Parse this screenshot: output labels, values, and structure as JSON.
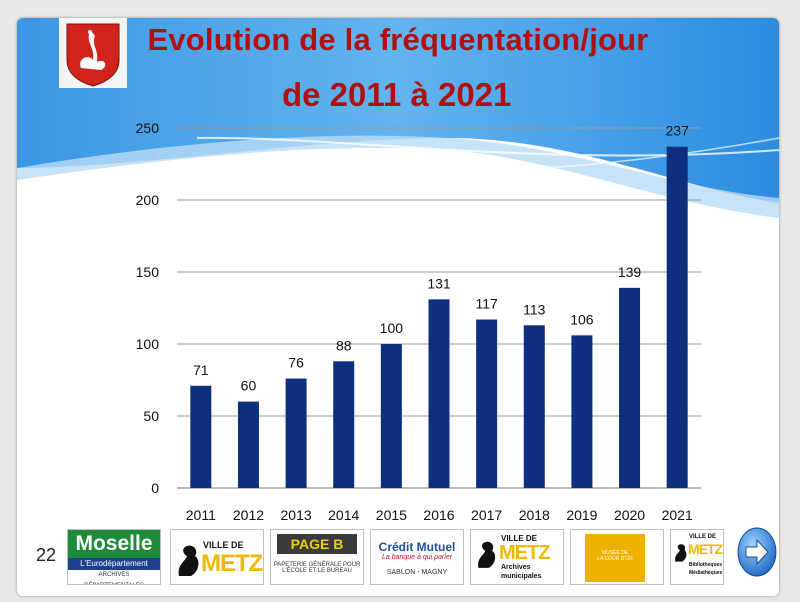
{
  "title": {
    "line1": "Evolution de la fréquentation/jour",
    "line2": "de 2011 à 2021"
  },
  "slide_number": "22",
  "colors": {
    "title": "#b01010",
    "bar": "#0e2f7e",
    "wave": "#3f9ce6"
  },
  "chart_data": {
    "type": "bar",
    "title": "",
    "xlabel": "",
    "ylabel": "",
    "categories": [
      "2011",
      "2012",
      "2013",
      "2014",
      "2015",
      "2016",
      "2017",
      "2018",
      "2019",
      "2020",
      "2021"
    ],
    "values": [
      71,
      60,
      76,
      88,
      100,
      131,
      117,
      113,
      106,
      139,
      237
    ],
    "ylim": [
      0,
      250
    ],
    "yticks": [
      0,
      50,
      100,
      150,
      200,
      250
    ],
    "grid": true,
    "legend": "none",
    "data_labels": true
  },
  "logos": [
    {
      "name": "moselle-logo",
      "lines": [
        "Moselle",
        "L'Eurodépartement",
        "ARCHIVES DÉPARTEMENTALES"
      ]
    },
    {
      "name": "ville-de-metz-logo",
      "lines": [
        "VILLE DE",
        "METZ"
      ]
    },
    {
      "name": "page-b-logo",
      "lines": [
        "PAGE B",
        "PAPETERIE GÉNÉRALE POUR",
        "L'ÉCOLE ET LE BUREAU"
      ]
    },
    {
      "name": "credit-mutuel-logo",
      "lines": [
        "Crédit Mutuel",
        "La banque à qui parler",
        "SABLON - MAGNY"
      ]
    },
    {
      "name": "metz-archives-logo",
      "lines": [
        "VILLE DE",
        "METZ",
        "Archives",
        "municipales"
      ]
    },
    {
      "name": "musee-cour-dor-logo",
      "lines": [
        "MUSÉE DE",
        "LA COUR D'OR"
      ]
    },
    {
      "name": "metz-bibliotheques-logo",
      "lines": [
        "VILLE DE",
        "METZ",
        "Bibliothèques",
        "Médiathèques"
      ]
    }
  ]
}
